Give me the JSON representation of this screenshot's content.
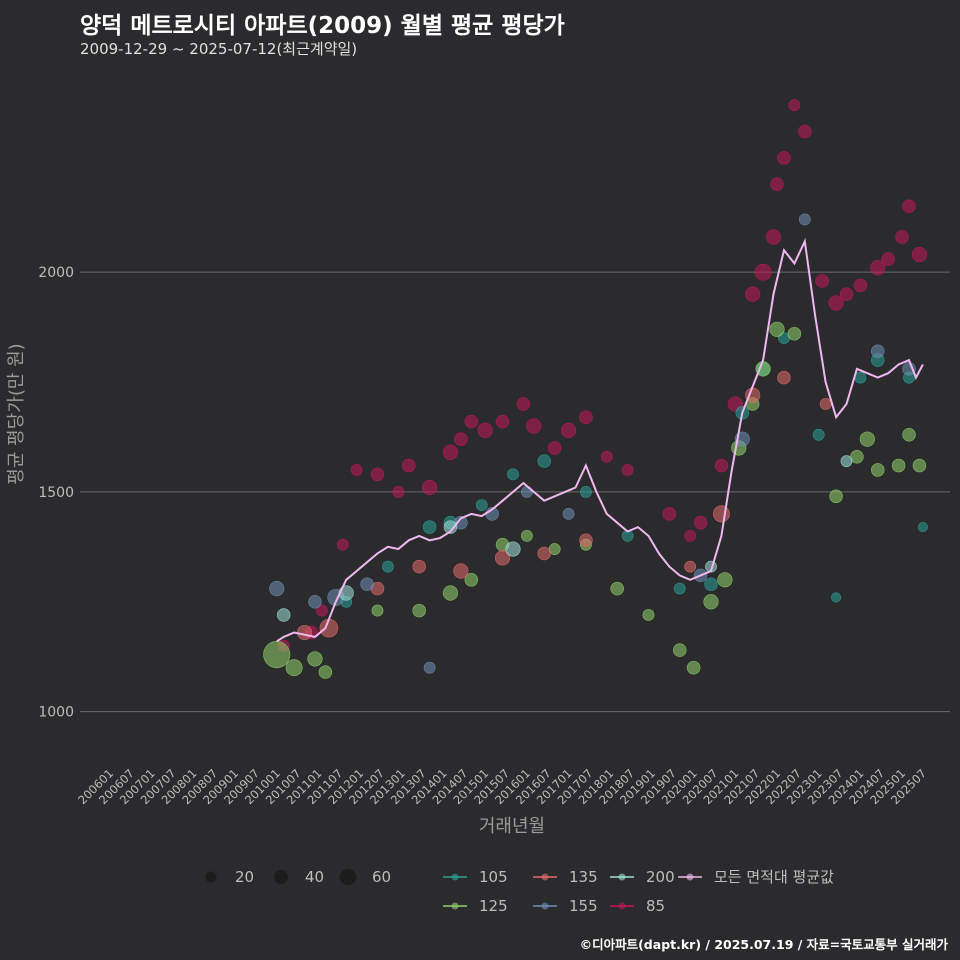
{
  "title": "양덕 메트로시티 아파트(2009) 월별 평균 평당가",
  "subtitle": "2009-12-29 ~ 2025-07-12(최근계약일)",
  "footer": "©디아파트(dapt.kr) / 2025.07.19 / 자료=국토교통부 실거래가",
  "colors": {
    "background": "#2b2b2d",
    "grid": "#6a6a6a",
    "text": "#bdbdbd",
    "s105": "#2aa198",
    "s125": "#8fd16a",
    "s135": "#e26a6a",
    "s155": "#6e8fb5",
    "s200": "#9fe0d8",
    "s85": "#c2185b",
    "avg": "#f0b8f0"
  },
  "chart_data": {
    "type": "scatter",
    "xlabel": "거래년월",
    "ylabel": "평균 평당가(만 원)",
    "ylim": [
      890,
      2460
    ],
    "yticks": [
      1000,
      1500,
      2000
    ],
    "grid": true,
    "legend_position": "bottom",
    "x_ticks": [
      "200601",
      "200607",
      "200701",
      "200707",
      "200801",
      "200807",
      "200901",
      "200907",
      "201001",
      "201007",
      "201101",
      "201107",
      "201201",
      "201207",
      "201301",
      "201307",
      "201401",
      "201407",
      "201501",
      "201507",
      "201601",
      "201607",
      "201701",
      "201707",
      "201801",
      "201807",
      "201901",
      "201907",
      "202001",
      "202007",
      "202101",
      "202107",
      "202201",
      "202207",
      "202301",
      "202307",
      "202401",
      "202407",
      "202501",
      "202507"
    ],
    "size_legend": {
      "values": [
        20,
        40,
        60
      ]
    },
    "series_legend": [
      {
        "name": "105",
        "color": "#2aa198"
      },
      {
        "name": "135",
        "color": "#e26a6a"
      },
      {
        "name": "200",
        "color": "#9fe0d8"
      },
      {
        "name": "모든 면적대 평균값",
        "color": "#f0b8f0"
      },
      {
        "name": "125",
        "color": "#8fd16a"
      },
      {
        "name": "155",
        "color": "#6e8fb5"
      },
      {
        "name": "85",
        "color": "#c2185b"
      }
    ],
    "average_line": {
      "name": "모든 면적대 평균값",
      "points": [
        [
          "2010-01",
          1160
        ],
        [
          "2010-03",
          1170
        ],
        [
          "2010-06",
          1180
        ],
        [
          "2010-09",
          1175
        ],
        [
          "2010-12",
          1170
        ],
        [
          "2011-03",
          1190
        ],
        [
          "2011-06",
          1250
        ],
        [
          "2011-09",
          1300
        ],
        [
          "2011-12",
          1320
        ],
        [
          "2012-03",
          1340
        ],
        [
          "2012-06",
          1360
        ],
        [
          "2012-09",
          1375
        ],
        [
          "2012-12",
          1370
        ],
        [
          "2013-03",
          1390
        ],
        [
          "2013-06",
          1400
        ],
        [
          "2013-09",
          1390
        ],
        [
          "2013-12",
          1395
        ],
        [
          "2014-03",
          1410
        ],
        [
          "2014-06",
          1440
        ],
        [
          "2014-09",
          1450
        ],
        [
          "2014-12",
          1445
        ],
        [
          "2015-03",
          1460
        ],
        [
          "2015-06",
          1480
        ],
        [
          "2015-09",
          1500
        ],
        [
          "2015-12",
          1520
        ],
        [
          "2016-03",
          1500
        ],
        [
          "2016-06",
          1480
        ],
        [
          "2016-09",
          1490
        ],
        [
          "2016-12",
          1500
        ],
        [
          "2017-03",
          1510
        ],
        [
          "2017-06",
          1560
        ],
        [
          "2017-09",
          1500
        ],
        [
          "2017-12",
          1450
        ],
        [
          "2018-03",
          1430
        ],
        [
          "2018-06",
          1410
        ],
        [
          "2018-09",
          1420
        ],
        [
          "2018-12",
          1400
        ],
        [
          "2019-03",
          1360
        ],
        [
          "2019-06",
          1330
        ],
        [
          "2019-09",
          1310
        ],
        [
          "2019-12",
          1300
        ],
        [
          "2020-03",
          1310
        ],
        [
          "2020-06",
          1320
        ],
        [
          "2020-09",
          1400
        ],
        [
          "2020-12",
          1550
        ],
        [
          "2021-03",
          1680
        ],
        [
          "2021-06",
          1740
        ],
        [
          "2021-09",
          1800
        ],
        [
          "2021-12",
          1950
        ],
        [
          "2022-03",
          2050
        ],
        [
          "2022-06",
          2020
        ],
        [
          "2022-09",
          2070
        ],
        [
          "2022-12",
          1900
        ],
        [
          "2023-03",
          1750
        ],
        [
          "2023-06",
          1670
        ],
        [
          "2023-09",
          1700
        ],
        [
          "2023-12",
          1780
        ],
        [
          "2024-03",
          1770
        ],
        [
          "2024-06",
          1760
        ],
        [
          "2024-09",
          1770
        ],
        [
          "2024-12",
          1790
        ],
        [
          "2025-03",
          1800
        ],
        [
          "2025-05",
          1760
        ],
        [
          "2025-07",
          1790
        ]
      ]
    },
    "scatter_series": [
      {
        "name": "85",
        "color": "#c2185b",
        "points": [
          [
            "2010-03",
            1150,
            20
          ],
          [
            "2010-11",
            1180,
            25
          ],
          [
            "2011-02",
            1230,
            20
          ],
          [
            "2011-08",
            1380,
            20
          ],
          [
            "2011-12",
            1550,
            20
          ],
          [
            "2012-06",
            1540,
            25
          ],
          [
            "2012-12",
            1500,
            20
          ],
          [
            "2013-03",
            1560,
            25
          ],
          [
            "2013-09",
            1510,
            30
          ],
          [
            "2014-03",
            1590,
            30
          ],
          [
            "2014-06",
            1620,
            25
          ],
          [
            "2014-09",
            1660,
            25
          ],
          [
            "2015-01",
            1640,
            30
          ],
          [
            "2015-06",
            1660,
            25
          ],
          [
            "2015-12",
            1700,
            25
          ],
          [
            "2016-03",
            1650,
            30
          ],
          [
            "2016-09",
            1600,
            25
          ],
          [
            "2017-01",
            1640,
            30
          ],
          [
            "2017-06",
            1670,
            25
          ],
          [
            "2017-12",
            1580,
            20
          ],
          [
            "2018-06",
            1550,
            20
          ],
          [
            "2019-06",
            1450,
            25
          ],
          [
            "2019-12",
            1400,
            20
          ],
          [
            "2020-03",
            1430,
            25
          ],
          [
            "2020-09",
            1560,
            25
          ],
          [
            "2021-01",
            1700,
            30
          ],
          [
            "2021-06",
            1950,
            30
          ],
          [
            "2021-09",
            2000,
            35
          ],
          [
            "2021-12",
            2080,
            30
          ],
          [
            "2022-01",
            2200,
            25
          ],
          [
            "2022-03",
            2260,
            25
          ],
          [
            "2022-06",
            2380,
            20
          ],
          [
            "2022-09",
            2320,
            25
          ],
          [
            "2023-02",
            1980,
            25
          ],
          [
            "2023-06",
            1930,
            30
          ],
          [
            "2023-09",
            1950,
            25
          ],
          [
            "2024-01",
            1970,
            25
          ],
          [
            "2024-06",
            2010,
            30
          ],
          [
            "2024-09",
            2030,
            25
          ],
          [
            "2025-01",
            2080,
            25
          ],
          [
            "2025-03",
            2150,
            25
          ],
          [
            "2025-06",
            2040,
            30
          ]
        ]
      },
      {
        "name": "105",
        "color": "#2aa198",
        "points": [
          [
            "2011-09",
            1250,
            20
          ],
          [
            "2012-09",
            1330,
            20
          ],
          [
            "2013-09",
            1420,
            25
          ],
          [
            "2014-03",
            1430,
            25
          ],
          [
            "2014-12",
            1470,
            20
          ],
          [
            "2015-09",
            1540,
            20
          ],
          [
            "2016-06",
            1570,
            25
          ],
          [
            "2017-06",
            1500,
            20
          ],
          [
            "2018-06",
            1400,
            20
          ],
          [
            "2019-09",
            1280,
            20
          ],
          [
            "2020-06",
            1290,
            25
          ],
          [
            "2021-03",
            1680,
            25
          ],
          [
            "2021-09",
            1780,
            25
          ],
          [
            "2022-03",
            1850,
            20
          ],
          [
            "2023-01",
            1630,
            20
          ],
          [
            "2023-06",
            1260,
            15
          ],
          [
            "2024-01",
            1760,
            20
          ],
          [
            "2024-06",
            1800,
            25
          ],
          [
            "2025-03",
            1760,
            20
          ],
          [
            "2025-07",
            1420,
            15
          ]
        ]
      },
      {
        "name": "125",
        "color": "#8fd16a",
        "points": [
          [
            "2010-01",
            1130,
            65
          ],
          [
            "2010-06",
            1100,
            35
          ],
          [
            "2010-12",
            1120,
            30
          ],
          [
            "2011-03",
            1090,
            25
          ],
          [
            "2012-06",
            1230,
            20
          ],
          [
            "2013-06",
            1230,
            25
          ],
          [
            "2014-03",
            1270,
            30
          ],
          [
            "2014-09",
            1300,
            25
          ],
          [
            "2015-06",
            1380,
            25
          ],
          [
            "2016-01",
            1400,
            20
          ],
          [
            "2016-09",
            1370,
            20
          ],
          [
            "2017-06",
            1380,
            20
          ],
          [
            "2018-03",
            1280,
            25
          ],
          [
            "2018-12",
            1220,
            20
          ],
          [
            "2019-09",
            1140,
            25
          ],
          [
            "2020-01",
            1100,
            25
          ],
          [
            "2020-06",
            1250,
            30
          ],
          [
            "2020-10",
            1300,
            30
          ],
          [
            "2021-02",
            1600,
            30
          ],
          [
            "2021-06",
            1700,
            25
          ],
          [
            "2021-09",
            1780,
            30
          ],
          [
            "2022-01",
            1870,
            30
          ],
          [
            "2022-06",
            1860,
            25
          ],
          [
            "2023-06",
            1490,
            25
          ],
          [
            "2023-12",
            1580,
            25
          ],
          [
            "2024-03",
            1620,
            30
          ],
          [
            "2024-06",
            1550,
            25
          ],
          [
            "2024-12",
            1560,
            25
          ],
          [
            "2025-03",
            1630,
            25
          ],
          [
            "2025-06",
            1560,
            25
          ]
        ]
      },
      {
        "name": "135",
        "color": "#e26a6a",
        "points": [
          [
            "2010-09",
            1180,
            30
          ],
          [
            "2011-04",
            1190,
            40
          ],
          [
            "2012-06",
            1280,
            25
          ],
          [
            "2013-06",
            1330,
            25
          ],
          [
            "2014-06",
            1320,
            30
          ],
          [
            "2015-06",
            1350,
            30
          ],
          [
            "2016-06",
            1360,
            25
          ],
          [
            "2017-06",
            1390,
            25
          ],
          [
            "2019-12",
            1330,
            20
          ],
          [
            "2020-09",
            1450,
            35
          ],
          [
            "2021-06",
            1720,
            30
          ],
          [
            "2022-03",
            1760,
            25
          ],
          [
            "2023-03",
            1700,
            20
          ]
        ]
      },
      {
        "name": "155",
        "color": "#6e8fb5",
        "points": [
          [
            "2010-01",
            1280,
            30
          ],
          [
            "2010-12",
            1250,
            25
          ],
          [
            "2011-06",
            1260,
            35
          ],
          [
            "2012-03",
            1290,
            25
          ],
          [
            "2013-09",
            1100,
            20
          ],
          [
            "2014-06",
            1430,
            25
          ],
          [
            "2015-03",
            1450,
            25
          ],
          [
            "2016-01",
            1500,
            20
          ],
          [
            "2017-01",
            1450,
            20
          ],
          [
            "2020-03",
            1310,
            25
          ],
          [
            "2021-03",
            1620,
            30
          ],
          [
            "2022-09",
            2120,
            20
          ],
          [
            "2024-06",
            1820,
            25
          ],
          [
            "2025-03",
            1780,
            25
          ]
        ]
      },
      {
        "name": "200",
        "color": "#9fe0d8",
        "points": [
          [
            "2010-03",
            1220,
            25
          ],
          [
            "2011-09",
            1270,
            30
          ],
          [
            "2014-03",
            1420,
            25
          ],
          [
            "2015-09",
            1370,
            30
          ],
          [
            "2020-06",
            1330,
            20
          ],
          [
            "2023-09",
            1570,
            20
          ]
        ]
      }
    ]
  }
}
